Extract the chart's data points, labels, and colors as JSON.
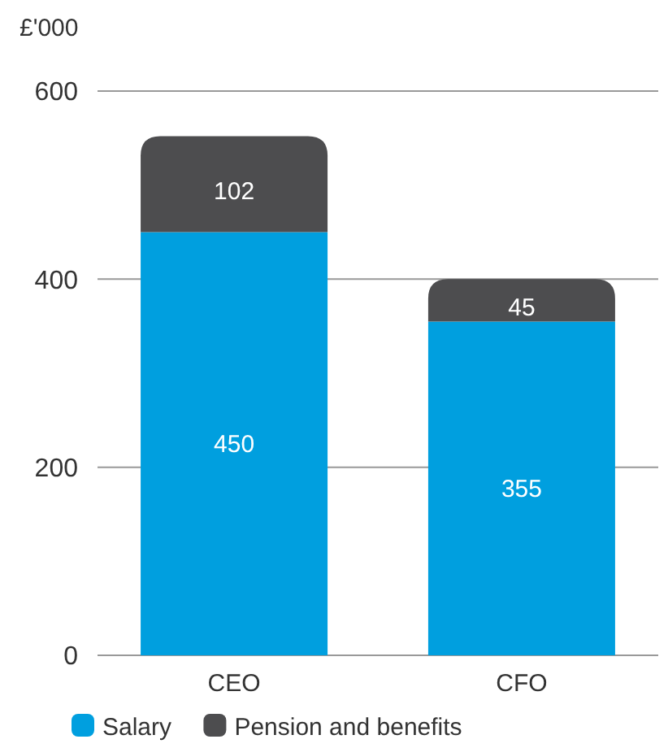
{
  "chart_data": {
    "type": "bar",
    "ylabel": "£'000",
    "categories": [
      "CEO",
      "CFO"
    ],
    "stacked": true,
    "series": [
      {
        "name": "Salary",
        "color": "#009fdf",
        "values": [
          450,
          355
        ]
      },
      {
        "name": "Pension and benefits",
        "color": "#4d4d4f",
        "values": [
          102,
          45
        ]
      }
    ],
    "ylim": [
      0,
      600
    ],
    "yticks": [
      0,
      200,
      400,
      600
    ],
    "grid": "y",
    "legend": "bottom left",
    "data_labels": true
  }
}
